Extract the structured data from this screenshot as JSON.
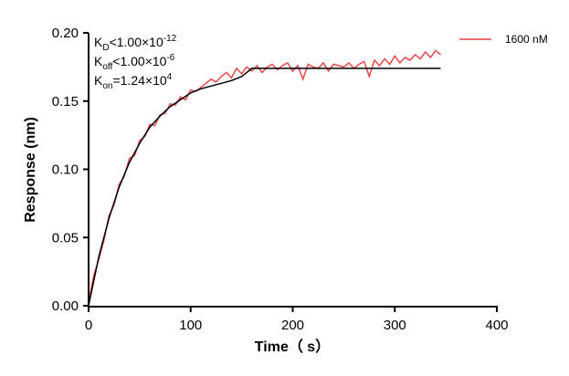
{
  "chart_data": {
    "type": "line",
    "xlabel": "Time（ s）",
    "ylabel": "Response (nm)",
    "xlim": [
      0,
      400
    ],
    "ylim": [
      0,
      0.2
    ],
    "xticks": [
      "0",
      "100",
      "200",
      "300",
      "400"
    ],
    "yticks": [
      "0.00",
      "0.05",
      "0.10",
      "0.15",
      "0.20"
    ],
    "grid": false,
    "legend_position": "top-right",
    "annotations": [
      {
        "main": "K",
        "sub": "D",
        "rel": "<1.00×10",
        "sup": "-12"
      },
      {
        "main": "K",
        "sub": "off",
        "rel": "<1.00×10",
        "sup": "-6"
      },
      {
        "main": "K",
        "sub": "on",
        "rel": "=1.24×10",
        "sup": "4"
      }
    ],
    "series": [
      {
        "name": "1600 nM",
        "color": "#e8474a",
        "x": [
          0,
          5,
          10,
          15,
          20,
          25,
          30,
          35,
          40,
          45,
          50,
          55,
          60,
          65,
          70,
          75,
          80,
          85,
          90,
          95,
          100,
          105,
          110,
          115,
          120,
          125,
          130,
          135,
          140,
          145,
          150,
          155,
          160,
          165,
          170,
          175,
          180,
          185,
          190,
          195,
          200,
          205,
          210,
          215,
          220,
          225,
          230,
          235,
          240,
          245,
          250,
          255,
          260,
          265,
          270,
          275,
          280,
          285,
          290,
          295,
          300,
          305,
          310,
          315,
          320,
          325,
          330,
          335,
          340,
          345
        ],
        "y": [
          0.003,
          0.022,
          0.034,
          0.048,
          0.066,
          0.074,
          0.089,
          0.095,
          0.108,
          0.11,
          0.121,
          0.124,
          0.133,
          0.132,
          0.14,
          0.141,
          0.148,
          0.147,
          0.153,
          0.151,
          0.158,
          0.157,
          0.16,
          0.163,
          0.166,
          0.164,
          0.168,
          0.171,
          0.167,
          0.174,
          0.17,
          0.175,
          0.172,
          0.176,
          0.171,
          0.175,
          0.177,
          0.173,
          0.176,
          0.178,
          0.172,
          0.176,
          0.166,
          0.177,
          0.175,
          0.174,
          0.178,
          0.172,
          0.177,
          0.176,
          0.175,
          0.178,
          0.174,
          0.177,
          0.179,
          0.168,
          0.18,
          0.176,
          0.181,
          0.177,
          0.183,
          0.178,
          0.182,
          0.18,
          0.184,
          0.181,
          0.186,
          0.182,
          0.187,
          0.184
        ]
      },
      {
        "color": "#000000",
        "x": [
          0,
          10,
          20,
          30,
          40,
          50,
          60,
          70,
          80,
          90,
          100,
          110,
          120,
          130,
          140,
          150,
          160,
          200,
          250,
          300,
          345
        ],
        "y": [
          0,
          0.036,
          0.064,
          0.087,
          0.105,
          0.119,
          0.131,
          0.139,
          0.146,
          0.151,
          0.156,
          0.159,
          0.161,
          0.163,
          0.165,
          0.168,
          0.174,
          0.174,
          0.174,
          0.174,
          0.174
        ]
      }
    ]
  }
}
